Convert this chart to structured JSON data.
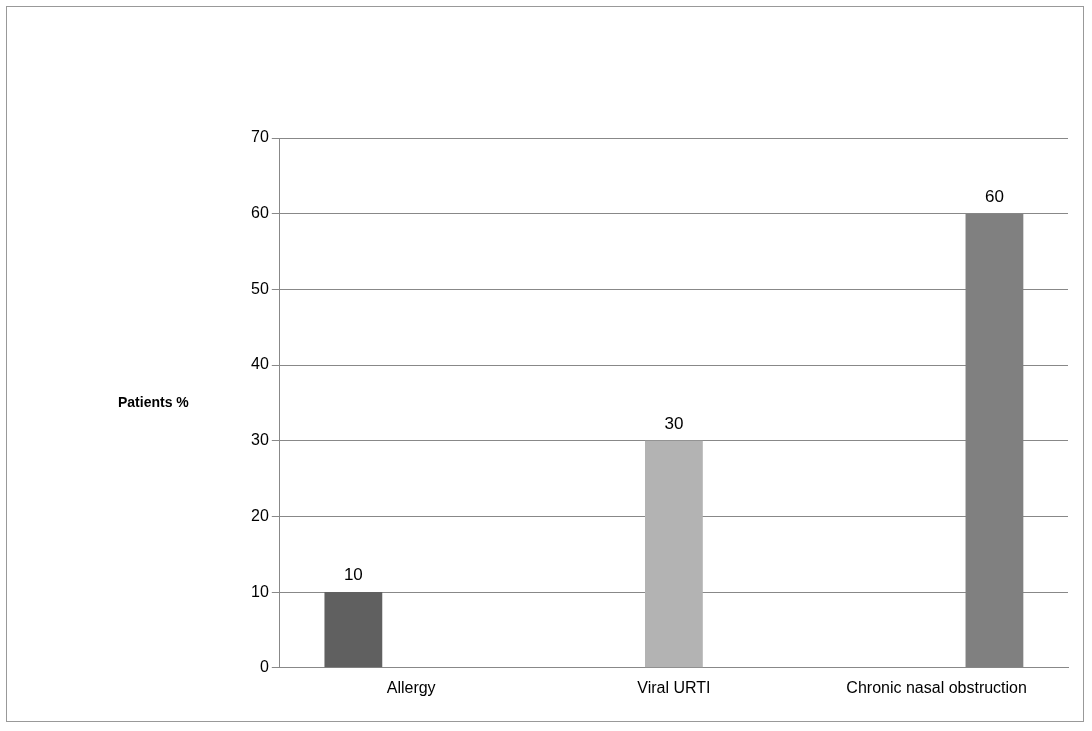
{
  "chart_data": {
    "type": "bar",
    "ylabel": "Patients %",
    "categories": [
      "Allergy",
      "Viral URTI",
      "Chronic nasal obstruction"
    ],
    "series": [
      {
        "color": "#606060",
        "values": [
          10,
          null,
          null
        ]
      },
      {
        "color": "#b3b3b3",
        "values": [
          null,
          30,
          null
        ]
      },
      {
        "color": "#808080",
        "values": [
          null,
          null,
          60
        ]
      }
    ],
    "ylim": [
      0,
      70
    ],
    "yticks": [
      0,
      10,
      20,
      30,
      40,
      50,
      60,
      70
    ],
    "grid": "y",
    "legend": false,
    "data_labels": true
  }
}
